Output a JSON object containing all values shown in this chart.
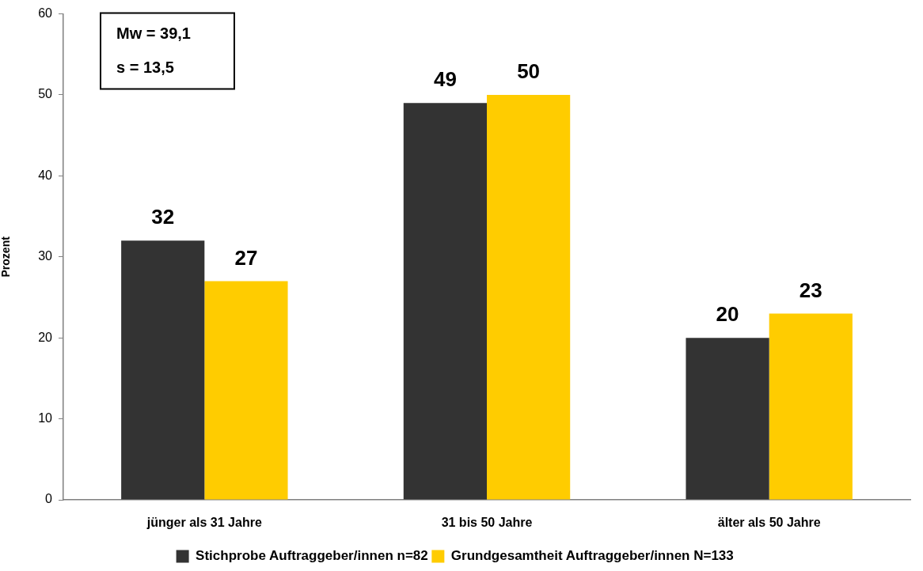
{
  "chart_data": {
    "type": "bar",
    "categories": [
      "jünger als 31 Jahre",
      "31 bis 50 Jahre",
      "älter als 50 Jahre"
    ],
    "series": [
      {
        "name": "Stichprobe Auftraggeber/innen n=82",
        "color": "#333333",
        "values": [
          32,
          49,
          20
        ]
      },
      {
        "name": "Grundgesamtheit Auftraggeber/innen N=133",
        "color": "#ffcc00",
        "values": [
          27,
          50,
          23
        ]
      }
    ],
    "ylabel": "Prozent",
    "ylim": [
      0,
      60
    ],
    "yticks": [
      0,
      10,
      20,
      30,
      40,
      50,
      60
    ],
    "grid": false,
    "legend": "bottom",
    "data_labels": true,
    "annotations": [
      "Mw = 39,1",
      "s = 13,5"
    ]
  }
}
